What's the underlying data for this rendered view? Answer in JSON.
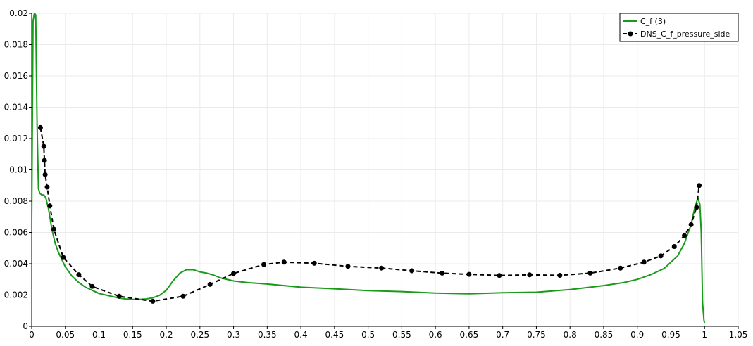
{
  "chart_data": {
    "type": "line",
    "xlim": [
      0,
      1.05
    ],
    "ylim": [
      0,
      0.02
    ],
    "grid": true,
    "legend_position": "top-right",
    "x_ticks": [
      "0",
      "0.05",
      "0.1",
      "0.15",
      "0.2",
      "0.25",
      "0.3",
      "0.35",
      "0.4",
      "0.45",
      "0.5",
      "0.55",
      "0.6",
      "0.65",
      "0.7",
      "0.75",
      "0.8",
      "0.85",
      "0.9",
      "0.95",
      "1",
      "1.05"
    ],
    "x_tick_values": [
      0,
      0.05,
      0.1,
      0.15,
      0.2,
      0.25,
      0.3,
      0.35,
      0.4,
      0.45,
      0.5,
      0.55,
      0.6,
      0.65,
      0.7,
      0.75,
      0.8,
      0.85,
      0.9,
      0.95,
      1.0,
      1.05
    ],
    "y_ticks": [
      "0",
      "0.002",
      "0.004",
      "0.006",
      "0.008",
      "0.01",
      "0.012",
      "0.014",
      "0.016",
      "0.018",
      "0.02"
    ],
    "y_tick_values": [
      0,
      0.002,
      0.004,
      0.006,
      0.008,
      0.01,
      0.012,
      0.014,
      0.016,
      0.018,
      0.02
    ],
    "series": [
      {
        "name": "C_f (3)",
        "color": "#1a9a1a",
        "style": "solid",
        "x": [
          0.0,
          0.002,
          0.004,
          0.006,
          0.008,
          0.01,
          0.012,
          0.015,
          0.018,
          0.021,
          0.025,
          0.03,
          0.035,
          0.04,
          0.05,
          0.06,
          0.07,
          0.08,
          0.09,
          0.1,
          0.11,
          0.12,
          0.13,
          0.14,
          0.15,
          0.16,
          0.17,
          0.18,
          0.19,
          0.2,
          0.21,
          0.22,
          0.23,
          0.24,
          0.25,
          0.26,
          0.27,
          0.28,
          0.3,
          0.32,
          0.35,
          0.4,
          0.45,
          0.5,
          0.55,
          0.6,
          0.65,
          0.7,
          0.75,
          0.8,
          0.85,
          0.88,
          0.9,
          0.92,
          0.94,
          0.96,
          0.97,
          0.98,
          0.985,
          0.99,
          0.993,
          0.995,
          0.997,
          0.999,
          1.0
        ],
        "y": [
          0.0067,
          0.0195,
          0.02,
          0.0199,
          0.013,
          0.0088,
          0.0085,
          0.0084,
          0.0084,
          0.0082,
          0.0075,
          0.0062,
          0.0053,
          0.0047,
          0.0038,
          0.0032,
          0.0028,
          0.0025,
          0.0023,
          0.0021,
          0.002,
          0.0019,
          0.0018,
          0.00175,
          0.00172,
          0.00172,
          0.00175,
          0.00182,
          0.00198,
          0.0023,
          0.0029,
          0.0034,
          0.00362,
          0.00362,
          0.00348,
          0.0034,
          0.00328,
          0.0031,
          0.0029,
          0.0028,
          0.0027,
          0.0025,
          0.0024,
          0.00228,
          0.00222,
          0.00212,
          0.00208,
          0.00215,
          0.00218,
          0.00235,
          0.0026,
          0.0028,
          0.003,
          0.0033,
          0.0037,
          0.0045,
          0.0053,
          0.0065,
          0.0075,
          0.0082,
          0.0078,
          0.006,
          0.0015,
          0.0004,
          0.0002
        ]
      },
      {
        "name": "DNS_C_f_pressure_side",
        "color": "#000000",
        "style": "dashed",
        "marker": "circle",
        "x": [
          0.013,
          0.018,
          0.019,
          0.02,
          0.023,
          0.027,
          0.033,
          0.047,
          0.07,
          0.09,
          0.13,
          0.18,
          0.225,
          0.265,
          0.3,
          0.345,
          0.375,
          0.42,
          0.47,
          0.52,
          0.565,
          0.61,
          0.65,
          0.695,
          0.74,
          0.785,
          0.83,
          0.875,
          0.91,
          0.935,
          0.955,
          0.97,
          0.98,
          0.988,
          0.992
        ],
        "y": [
          0.0127,
          0.0115,
          0.0106,
          0.0097,
          0.0089,
          0.0077,
          0.0062,
          0.0044,
          0.0033,
          0.00255,
          0.00192,
          0.0016,
          0.00192,
          0.00268,
          0.00338,
          0.00395,
          0.0041,
          0.00403,
          0.00383,
          0.00372,
          0.00355,
          0.0034,
          0.00332,
          0.00325,
          0.00329,
          0.00326,
          0.0034,
          0.00372,
          0.0041,
          0.0045,
          0.0051,
          0.0058,
          0.0065,
          0.0076,
          0.009
        ]
      }
    ]
  }
}
